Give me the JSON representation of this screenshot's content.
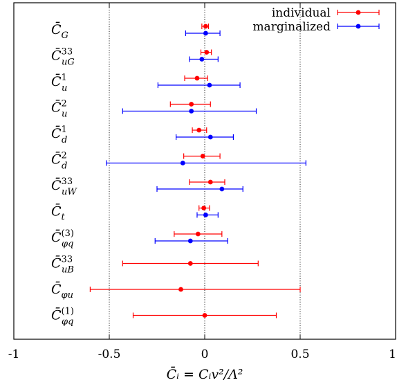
{
  "chart_data": {
    "type": "scatter",
    "subtype": "error-bar-forest",
    "xlabel": "C̄ᵢ = Cᵢv²/Λ²",
    "xlim": [
      -1,
      1
    ],
    "xticks": [
      {
        "value": -1,
        "label": "-1"
      },
      {
        "value": -0.5,
        "label": "-0.5"
      },
      {
        "value": 0,
        "label": "0"
      },
      {
        "value": 0.5,
        "label": "0.5"
      },
      {
        "value": 1,
        "label": "1"
      }
    ],
    "vertical_lines": [
      -0.5,
      0,
      0.5
    ],
    "grid": false,
    "legend_position": "top-right",
    "series": [
      {
        "name": "individual",
        "color": "#ff0000"
      },
      {
        "name": "marginalized",
        "color": "#0000ff"
      }
    ],
    "categories": [
      {
        "base": "C̄",
        "sub": "G",
        "sup": "",
        "individual": {
          "value": 0.005,
          "low": -0.015,
          "high": 0.02
        },
        "marginalized": {
          "value": 0.005,
          "low": -0.1,
          "high": 0.08
        }
      },
      {
        "base": "C̄",
        "sub": "uG",
        "sup": "33",
        "individual": {
          "value": 0.01,
          "low": -0.02,
          "high": 0.035
        },
        "marginalized": {
          "value": -0.015,
          "low": -0.08,
          "high": 0.07
        }
      },
      {
        "base": "C̄",
        "sub": "u",
        "sup": "1",
        "individual": {
          "value": -0.04,
          "low": -0.105,
          "high": 0.015
        },
        "marginalized": {
          "value": 0.025,
          "low": -0.245,
          "high": 0.185
        }
      },
      {
        "base": "C̄",
        "sub": "u",
        "sup": "2",
        "individual": {
          "value": -0.07,
          "low": -0.18,
          "high": 0.03
        },
        "marginalized": {
          "value": -0.07,
          "low": -0.43,
          "high": 0.27
        }
      },
      {
        "base": "C̄",
        "sub": "d",
        "sup": "1",
        "individual": {
          "value": -0.03,
          "low": -0.065,
          "high": 0.01
        },
        "marginalized": {
          "value": 0.03,
          "low": -0.15,
          "high": 0.15
        }
      },
      {
        "base": "C̄",
        "sub": "d",
        "sup": "2",
        "individual": {
          "value": -0.01,
          "low": -0.11,
          "high": 0.08
        },
        "marginalized": {
          "value": -0.115,
          "low": -0.515,
          "high": 0.53
        }
      },
      {
        "base": "C̄",
        "sub": "uW",
        "sup": "33",
        "individual": {
          "value": 0.03,
          "low": -0.08,
          "high": 0.105
        },
        "marginalized": {
          "value": 0.09,
          "low": -0.25,
          "high": 0.2
        }
      },
      {
        "base": "C̄",
        "sub": "t",
        "sup": "",
        "individual": {
          "value": -0.005,
          "low": -0.03,
          "high": 0.025
        },
        "marginalized": {
          "value": 0.005,
          "low": -0.04,
          "high": 0.07
        }
      },
      {
        "base": "C̄",
        "sub": "φq",
        "sup": "(3)",
        "individual": {
          "value": -0.035,
          "low": -0.16,
          "high": 0.09
        },
        "marginalized": {
          "value": -0.075,
          "low": -0.26,
          "high": 0.12
        }
      },
      {
        "base": "C̄",
        "sub": "uB",
        "sup": "33",
        "individual": {
          "value": -0.075,
          "low": -0.43,
          "high": 0.28
        }
      },
      {
        "base": "C̄",
        "sub": "φu",
        "sup": "",
        "individual": {
          "value": -0.125,
          "low": -0.6,
          "high": 0.5
        }
      },
      {
        "base": "C̄",
        "sub": "φq",
        "sup": "(1)",
        "individual": {
          "value": 0.0,
          "low": -0.375,
          "high": 0.375
        }
      }
    ]
  }
}
